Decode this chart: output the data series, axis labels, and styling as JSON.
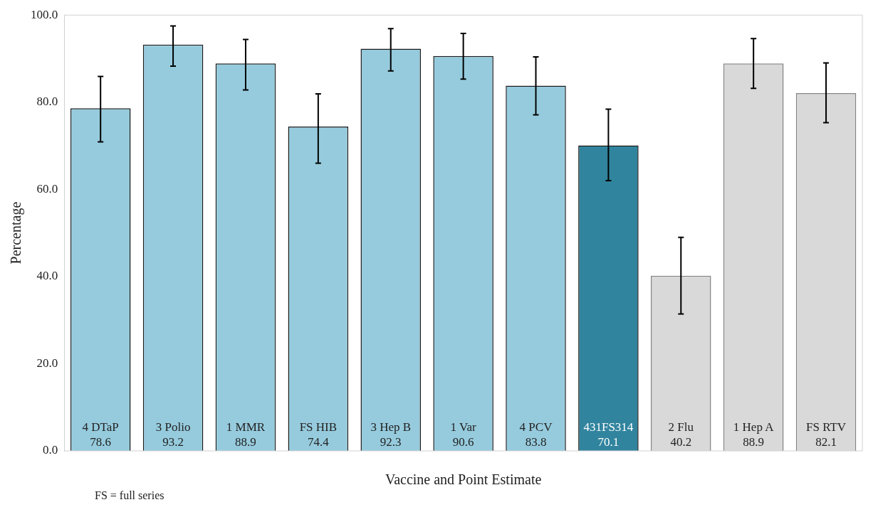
{
  "chart_data": {
    "type": "bar",
    "xlabel": "Vaccine and Point Estimate",
    "ylabel": "Percentage",
    "categories": [
      "4 DTaP",
      "3 Polio",
      "1 MMR",
      "FS HIB",
      "3 Hep B",
      "1 Var",
      "4 PCV",
      "431FS314",
      "2 Flu",
      "1 Hep A",
      "FS RTV"
    ],
    "values": [
      78.6,
      93.2,
      88.9,
      74.4,
      92.3,
      90.6,
      83.8,
      70.1,
      40.2,
      88.9,
      82.1
    ],
    "colors": [
      "#96cbdd",
      "#96cbdd",
      "#96cbdd",
      "#96cbdd",
      "#96cbdd",
      "#96cbdd",
      "#96cbdd",
      "#31849e",
      "#d9d9d9",
      "#d9d9d9",
      "#d9d9d9"
    ],
    "errors": [
      [
        70.9,
        85.9
      ],
      [
        88.3,
        97.5
      ],
      [
        82.8,
        94.4
      ],
      [
        66.0,
        81.9
      ],
      [
        87.2,
        96.9
      ],
      [
        85.3,
        95.8
      ],
      [
        77.1,
        90.4
      ],
      [
        62.0,
        78.4
      ],
      [
        31.4,
        49.0
      ],
      [
        83.2,
        94.6
      ],
      [
        75.3,
        89.0
      ]
    ],
    "ylim": [
      0,
      100
    ],
    "yticks": [
      {
        "value": 0,
        "label": "0.0"
      },
      {
        "value": 20,
        "label": "20.0"
      },
      {
        "value": 40,
        "label": "40.0"
      },
      {
        "value": 60,
        "label": "60.0"
      },
      {
        "value": 80,
        "label": "80.0"
      },
      {
        "value": 100,
        "label": "100.0"
      }
    ],
    "data_labels": true,
    "grid": false,
    "legend": false,
    "annotations": [
      "FS = full series"
    ]
  }
}
